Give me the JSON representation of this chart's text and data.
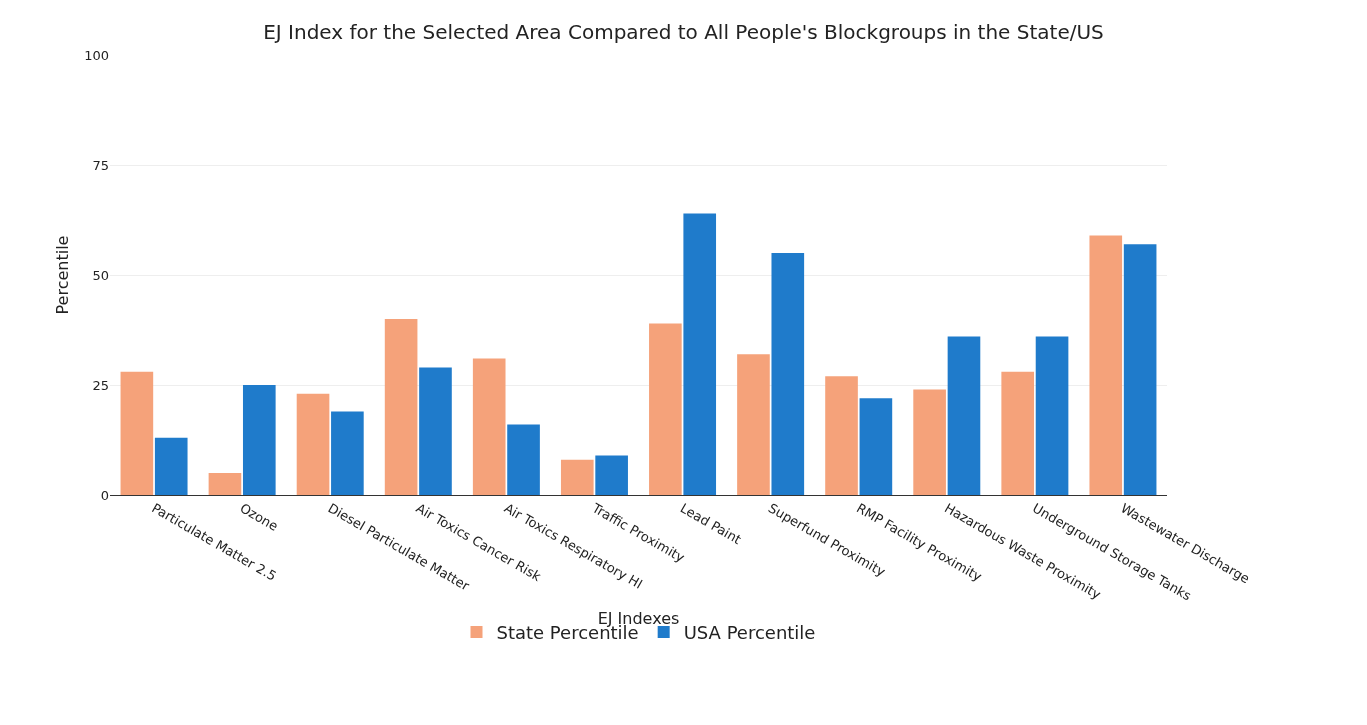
{
  "chart_data": {
    "type": "bar",
    "title": "EJ Index for the Selected Area Compared to All People's Blockgroups in the State/US",
    "xlabel": "EJ Indexes",
    "ylabel": "Percentile",
    "categories": [
      "Particulate Matter 2.5",
      "Ozone",
      "Diesel Particulate Matter",
      "Air Toxics Cancer Risk",
      "Air Toxics Respiratory HI",
      "Traffic Proximity",
      "Lead Paint",
      "Superfund Proximity",
      "RMP Facility Proximity",
      "Hazardous Waste Proximity",
      "Underground Storage Tanks",
      "Wastewater Discharge"
    ],
    "series": [
      {
        "name": "State Percentile",
        "color": "#f5a27a",
        "values": [
          28,
          5,
          23,
          40,
          31,
          8,
          39,
          32,
          27,
          24,
          28,
          59
        ]
      },
      {
        "name": "USA Percentile",
        "color": "#1f7bcb",
        "values": [
          13,
          25,
          19,
          29,
          16,
          9,
          64,
          55,
          22,
          36,
          36,
          57
        ]
      }
    ],
    "ylim": [
      0,
      100
    ],
    "yticks": [
      0,
      25,
      50,
      75,
      100
    ],
    "grid": "y",
    "legend": "bottom"
  }
}
